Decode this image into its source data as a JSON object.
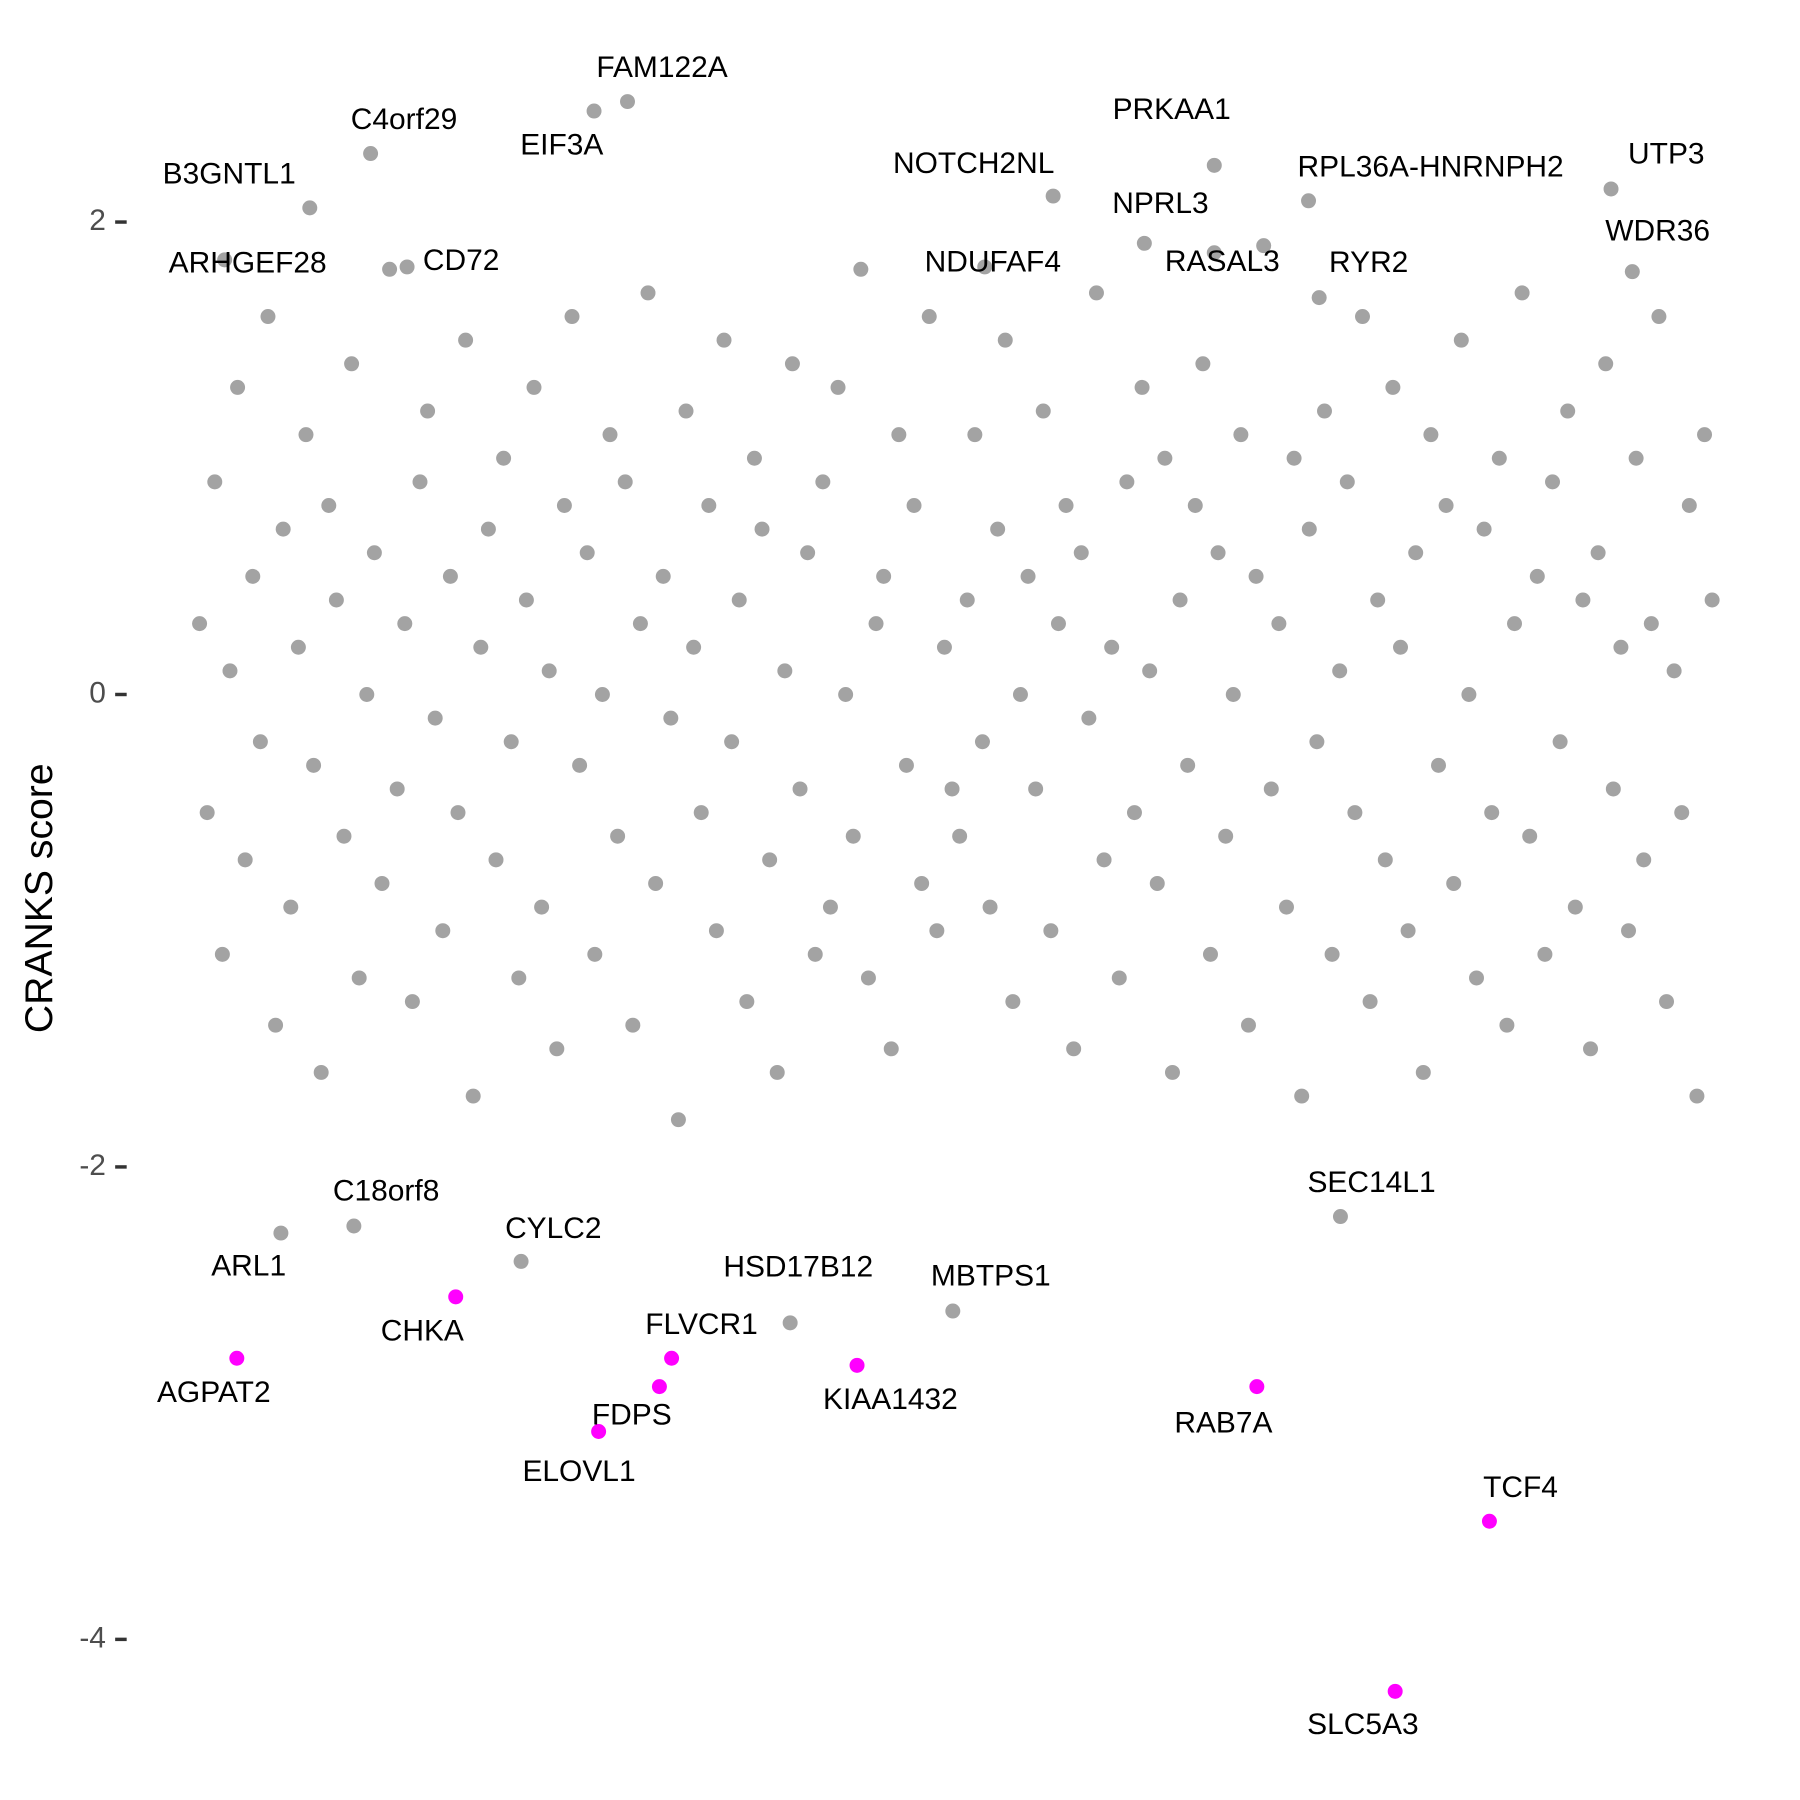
{
  "chart_data": {
    "type": "scatter",
    "y_label": "CRANKS score",
    "ylim": [
      -4.68,
      2.94
    ],
    "yticks": [
      -4,
      -2,
      0,
      2
    ],
    "xlim": [
      0,
      100
    ],
    "series": [
      {
        "color": "#a3a3a3",
        "values": [
          0.3,
          -0.5,
          0.9,
          -1.1,
          0.1,
          1.3,
          -0.7,
          0.5,
          -0.2,
          1.6,
          -1.4,
          0.7,
          -0.9,
          0.2,
          1.1,
          -0.3,
          -1.6,
          0.8,
          0.4,
          -0.6,
          1.4,
          -1.2,
          0.0,
          0.6,
          -0.8,
          1.8,
          -0.4,
          0.3,
          -1.3,
          0.9,
          1.2,
          -0.1,
          -1.0,
          0.5,
          -0.5,
          1.5,
          -1.7,
          0.2,
          0.7,
          -0.7,
          1.0,
          -0.2,
          -1.2,
          0.4,
          1.3,
          -0.9,
          0.1,
          -1.5,
          0.8,
          1.6,
          -0.3,
          0.6,
          -1.1,
          0.0,
          1.1,
          -0.6,
          0.9,
          -1.4,
          0.3,
          1.7,
          -0.8,
          0.5,
          -0.1,
          -1.8,
          1.2,
          0.2,
          -0.5,
          0.8,
          -1.0,
          1.5,
          -0.2,
          0.4,
          -1.3,
          1.0,
          0.7,
          -0.7,
          -1.6,
          0.1,
          1.4,
          -0.4,
          0.6,
          -1.1,
          0.9,
          -0.9,
          1.3,
          0.0,
          -0.6,
          1.8,
          -1.2,
          0.3,
          0.5,
          -1.5,
          1.1,
          -0.3,
          0.8,
          -0.8,
          1.6,
          -1.0,
          0.2,
          -0.4,
          -0.6,
          0.4,
          1.1,
          -0.2,
          -0.9,
          0.7,
          1.5,
          -1.3,
          0.0,
          0.5,
          -0.4,
          1.2,
          -1.0,
          0.3,
          0.8,
          -1.5,
          0.6,
          -0.1,
          1.7,
          -0.7,
          0.2,
          -1.2,
          0.9,
          -0.5,
          1.3,
          0.1,
          -0.8,
          1.0,
          -1.6,
          0.4,
          -0.3,
          0.8,
          1.4,
          -1.1,
          0.6,
          -0.6,
          0.0,
          1.1,
          -1.4,
          0.5,
          1.9,
          -0.4,
          0.3,
          -0.9,
          1.0,
          -1.7,
          0.7,
          -0.2,
          1.2,
          -1.1,
          0.1,
          0.9,
          -0.5,
          1.6,
          -1.3,
          0.4,
          -0.7,
          1.3,
          0.2,
          -1.0,
          0.6,
          -1.6,
          1.1,
          -0.3,
          0.8,
          -0.8,
          1.5,
          0.0,
          -1.2,
          0.7,
          -0.5,
          1.0,
          -1.4,
          0.3,
          1.7,
          -0.6,
          0.5,
          -1.1,
          0.9,
          -0.2,
          1.2,
          -0.9,
          0.4,
          -1.5,
          0.6,
          1.4,
          -0.4,
          0.2,
          -1.0,
          1.0,
          -0.7,
          0.3,
          1.6,
          -1.3,
          0.1,
          -0.5,
          0.8,
          -1.7,
          1.1,
          0.4
        ]
      },
      {
        "color": "#a3a3a3",
        "labels": [
          "FAM122A",
          "EIF3A",
          "C4orf29",
          "B3GNTL1",
          "ARHGEF28",
          "CD72",
          "PRKAA1",
          "NOTCH2NL",
          "NPRL3",
          "NDUFAF4",
          "RASAL3",
          "RPL36A-HNRNPH2",
          "RYR2",
          "UTP3",
          "WDR36",
          "C18orf8",
          "ARL1",
          "CYLC2",
          "HSD17B12",
          "MBTPS1",
          "SEC14L1"
        ],
        "x": [
          28.4,
          26.2,
          11.5,
          7.5,
          1.9,
          13.9,
          67.0,
          56.4,
          62.4,
          51.9,
          67.0,
          73.2,
          73.9,
          93.1,
          94.5,
          10.4,
          5.6,
          21.4,
          39.1,
          49.8,
          75.3
        ],
        "values": [
          2.51,
          2.47,
          2.29,
          2.06,
          1.84,
          1.81,
          2.24,
          2.11,
          1.91,
          1.81,
          1.87,
          2.09,
          1.68,
          2.14,
          1.79,
          -2.25,
          -2.28,
          -2.4,
          -2.66,
          -2.61,
          -2.21
        ]
      },
      {
        "color": "#ff00ff",
        "labels": [
          "CHKA",
          "AGPAT2",
          "FLVCR1",
          "FDPS",
          "ELOVL1",
          "KIAA1432",
          "RAB7A",
          "TCF4",
          "SLC5A3"
        ],
        "x": [
          17.1,
          2.7,
          31.3,
          30.5,
          26.5,
          43.5,
          69.8,
          85.1,
          78.9
        ],
        "values": [
          -2.55,
          -2.81,
          -2.81,
          -2.93,
          -3.12,
          -2.84,
          -2.93,
          -3.5,
          -4.22
        ]
      }
    ]
  }
}
